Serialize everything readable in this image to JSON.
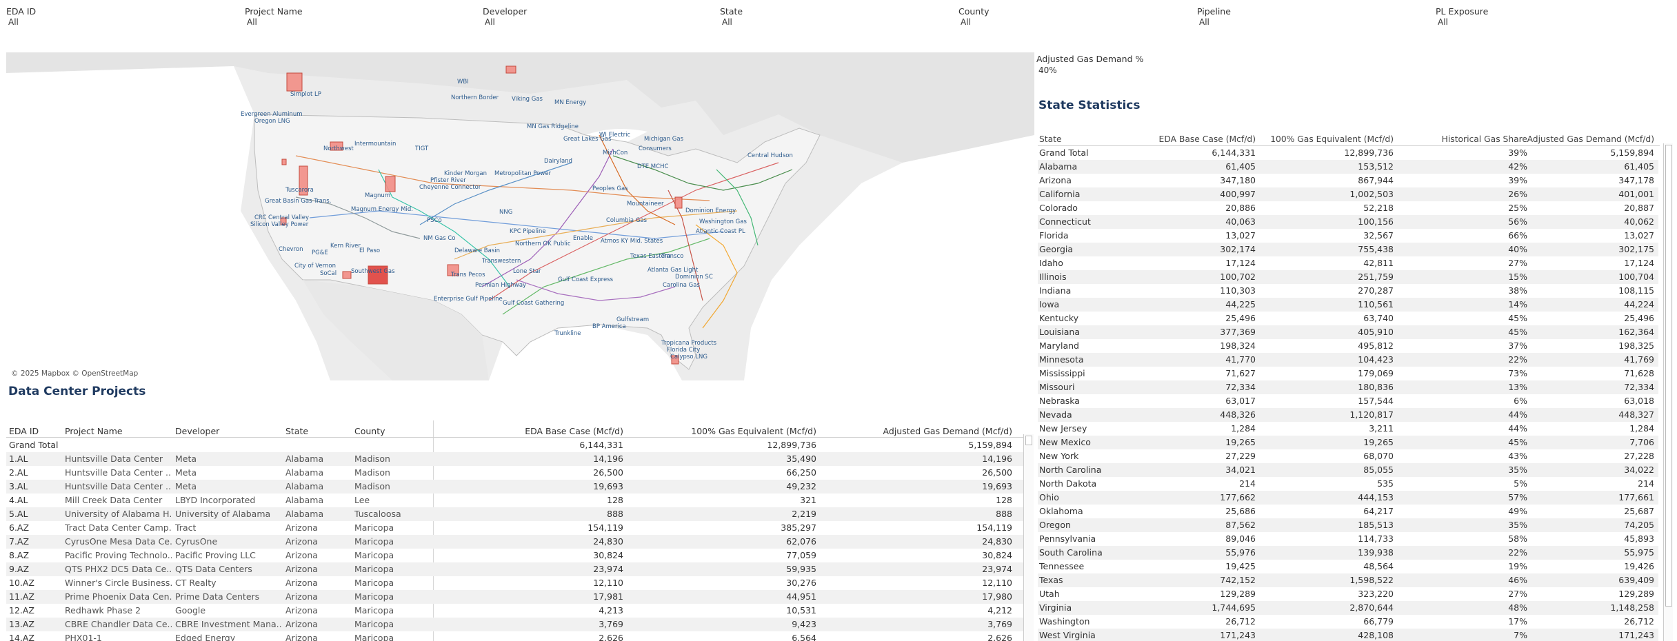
{
  "filters": [
    {
      "label": "EDA ID",
      "value": "All"
    },
    {
      "label": "Project Name",
      "value": "All"
    },
    {
      "label": "Developer",
      "value": "All"
    },
    {
      "label": "State",
      "value": "All"
    },
    {
      "label": "County",
      "value": "All"
    },
    {
      "label": "Pipeline",
      "value": "All"
    },
    {
      "label": "PL Exposure",
      "value": "All"
    }
  ],
  "map": {
    "credit": "© 2025 Mapbox © OpenStreetMap",
    "pipeline_labels": [
      "WBI",
      "Northern Border",
      "Viking Gas",
      "MN Energy",
      "Simplot LP",
      "Evergreen Aluminum",
      "Oregon LNG",
      "Intermountain",
      "Northwest",
      "TIGT",
      "MN Gas Ridgeline",
      "Great Lakes Gas",
      "WI Electric",
      "Michigan Gas",
      "Consumers",
      "MichCon",
      "DTE MCHC",
      "Central Hudson",
      "Dairyland",
      "Cheyenne Connector",
      "Kinder Morgan",
      "Pfister River",
      "Metropolitan Power",
      "Peoples Gas",
      "Tuscarora",
      "Magnum",
      "Great Basin Gas Trans.",
      "Magnum Energy Mid.",
      "CRC Central Valley",
      "Silicon Valley Power",
      "PSCo",
      "NM Gas Co",
      "Kern River",
      "El Paso",
      "Chevron",
      "PG&E",
      "City of Vernon",
      "SoCal",
      "Southwest Gas",
      "Trans Pecos",
      "Transwestern",
      "NNG",
      "KPC Pipeline",
      "Northern OK Public",
      "Enable",
      "Atmos KY Mid. States",
      "Columbia Gas",
      "Enterprise Gulf Pipeline",
      "Texas Eastern",
      "Lone Star",
      "Gulf Coast Express",
      "Gulf Coast Gathering",
      "Trunkline",
      "BP America",
      "Gulfstream",
      "Tropicana Products",
      "Florida City",
      "Calypso LNG",
      "Dominion SC",
      "Carolina Gas",
      "Atlanta Gas Light",
      "Transco",
      "Washington Gas",
      "Atlantic Coast PL",
      "Dominion Energy",
      "Mountaineer",
      "Permian Highway",
      "Delaware Basin"
    ]
  },
  "parameter": {
    "label": "Adjusted Gas Demand %",
    "value": "40%"
  },
  "state_statistics": {
    "title": "State Statistics",
    "headers": {
      "state": "State",
      "eda": "EDA Base Case (Mcf/d)",
      "gas": "100% Gas Equivalent (Mcf/d)",
      "hist": "Historical Gas Share",
      "adj": "Adjusted Gas Demand (Mcf/d)"
    },
    "rows": [
      {
        "state": "Grand Total",
        "eda": "6,144,331",
        "gas": "12,899,736",
        "hist": "39%",
        "adj": "5,159,894"
      },
      {
        "state": "Alabama",
        "eda": "61,405",
        "gas": "153,512",
        "hist": "42%",
        "adj": "61,405"
      },
      {
        "state": "Arizona",
        "eda": "347,180",
        "gas": "867,944",
        "hist": "39%",
        "adj": "347,178"
      },
      {
        "state": "California",
        "eda": "400,997",
        "gas": "1,002,503",
        "hist": "26%",
        "adj": "401,001"
      },
      {
        "state": "Colorado",
        "eda": "20,886",
        "gas": "52,218",
        "hist": "25%",
        "adj": "20,887"
      },
      {
        "state": "Connecticut",
        "eda": "40,063",
        "gas": "100,156",
        "hist": "56%",
        "adj": "40,062"
      },
      {
        "state": "Florida",
        "eda": "13,027",
        "gas": "32,567",
        "hist": "66%",
        "adj": "13,027"
      },
      {
        "state": "Georgia",
        "eda": "302,174",
        "gas": "755,438",
        "hist": "40%",
        "adj": "302,175"
      },
      {
        "state": "Idaho",
        "eda": "17,124",
        "gas": "42,811",
        "hist": "27%",
        "adj": "17,124"
      },
      {
        "state": "Illinois",
        "eda": "100,702",
        "gas": "251,759",
        "hist": "15%",
        "adj": "100,704"
      },
      {
        "state": "Indiana",
        "eda": "110,303",
        "gas": "270,287",
        "hist": "38%",
        "adj": "108,115"
      },
      {
        "state": "Iowa",
        "eda": "44,225",
        "gas": "110,561",
        "hist": "14%",
        "adj": "44,224"
      },
      {
        "state": "Kentucky",
        "eda": "25,496",
        "gas": "63,740",
        "hist": "45%",
        "adj": "25,496"
      },
      {
        "state": "Louisiana",
        "eda": "377,369",
        "gas": "405,910",
        "hist": "45%",
        "adj": "162,364"
      },
      {
        "state": "Maryland",
        "eda": "198,324",
        "gas": "495,812",
        "hist": "37%",
        "adj": "198,325"
      },
      {
        "state": "Minnesota",
        "eda": "41,770",
        "gas": "104,423",
        "hist": "22%",
        "adj": "41,769"
      },
      {
        "state": "Mississippi",
        "eda": "71,627",
        "gas": "179,069",
        "hist": "73%",
        "adj": "71,628"
      },
      {
        "state": "Missouri",
        "eda": "72,334",
        "gas": "180,836",
        "hist": "13%",
        "adj": "72,334"
      },
      {
        "state": "Nebraska",
        "eda": "63,017",
        "gas": "157,544",
        "hist": "6%",
        "adj": "63,018"
      },
      {
        "state": "Nevada",
        "eda": "448,326",
        "gas": "1,120,817",
        "hist": "44%",
        "adj": "448,327"
      },
      {
        "state": "New Jersey",
        "eda": "1,284",
        "gas": "3,211",
        "hist": "44%",
        "adj": "1,284"
      },
      {
        "state": "New Mexico",
        "eda": "19,265",
        "gas": "19,265",
        "hist": "45%",
        "adj": "7,706"
      },
      {
        "state": "New York",
        "eda": "27,229",
        "gas": "68,070",
        "hist": "43%",
        "adj": "27,228"
      },
      {
        "state": "North Carolina",
        "eda": "34,021",
        "gas": "85,055",
        "hist": "35%",
        "adj": "34,022"
      },
      {
        "state": "North Dakota",
        "eda": "214",
        "gas": "535",
        "hist": "5%",
        "adj": "214"
      },
      {
        "state": "Ohio",
        "eda": "177,662",
        "gas": "444,153",
        "hist": "57%",
        "adj": "177,661"
      },
      {
        "state": "Oklahoma",
        "eda": "25,686",
        "gas": "64,217",
        "hist": "49%",
        "adj": "25,687"
      },
      {
        "state": "Oregon",
        "eda": "87,562",
        "gas": "185,513",
        "hist": "35%",
        "adj": "74,205"
      },
      {
        "state": "Pennsylvania",
        "eda": "89,046",
        "gas": "114,733",
        "hist": "58%",
        "adj": "45,893"
      },
      {
        "state": "South Carolina",
        "eda": "55,976",
        "gas": "139,938",
        "hist": "22%",
        "adj": "55,975"
      },
      {
        "state": "Tennessee",
        "eda": "19,425",
        "gas": "48,564",
        "hist": "19%",
        "adj": "19,426"
      },
      {
        "state": "Texas",
        "eda": "742,152",
        "gas": "1,598,522",
        "hist": "46%",
        "adj": "639,409"
      },
      {
        "state": "Utah",
        "eda": "129,289",
        "gas": "323,220",
        "hist": "27%",
        "adj": "129,289"
      },
      {
        "state": "Virginia",
        "eda": "1,744,695",
        "gas": "2,870,644",
        "hist": "48%",
        "adj": "1,148,258"
      },
      {
        "state": "Washington",
        "eda": "26,712",
        "gas": "66,779",
        "hist": "17%",
        "adj": "26,712"
      },
      {
        "state": "West Virginia",
        "eda": "171,243",
        "gas": "428,108",
        "hist": "7%",
        "adj": "171,243"
      }
    ]
  },
  "data_center_projects": {
    "title": "Data Center Projects",
    "headers": {
      "id": "EDA ID",
      "name": "Project Name",
      "dev": "Developer",
      "state": "State",
      "county": "County",
      "eda": "EDA Base Case (Mcf/d)",
      "gas": "100% Gas Equivalent (Mcf/d)",
      "adj": "Adjusted Gas Demand (Mcf/d)"
    },
    "grand_total": {
      "label": "Grand Total",
      "eda": "6,144,331",
      "gas": "12,899,736",
      "adj": "5,159,894"
    },
    "rows": [
      {
        "id": "1.AL",
        "name": "Huntsville Data Center",
        "dev": "Meta",
        "state": "Alabama",
        "county": "Madison",
        "eda": "14,196",
        "gas": "35,490",
        "adj": "14,196"
      },
      {
        "id": "2.AL",
        "name": "Huntsville Data Center ..",
        "dev": "Meta",
        "state": "Alabama",
        "county": "Madison",
        "eda": "26,500",
        "gas": "66,250",
        "adj": "26,500"
      },
      {
        "id": "3.AL",
        "name": "Huntsville Data Center ..",
        "dev": "Meta",
        "state": "Alabama",
        "county": "Madison",
        "eda": "19,693",
        "gas": "49,232",
        "adj": "19,693"
      },
      {
        "id": "4.AL",
        "name": "Mill Creek Data Center",
        "dev": "LBYD Incorporated",
        "state": "Alabama",
        "county": "Lee",
        "eda": "128",
        "gas": "321",
        "adj": "128"
      },
      {
        "id": "5.AL",
        "name": "University of Alabama H..",
        "dev": "University of Alabama",
        "state": "Alabama",
        "county": "Tuscaloosa",
        "eda": "888",
        "gas": "2,219",
        "adj": "888"
      },
      {
        "id": "6.AZ",
        "name": "Tract Data Center Camp..",
        "dev": "Tract",
        "state": "Arizona",
        "county": "Maricopa",
        "eda": "154,119",
        "gas": "385,297",
        "adj": "154,119"
      },
      {
        "id": "7.AZ",
        "name": "CyrusOne Mesa Data Ce..",
        "dev": "CyrusOne",
        "state": "Arizona",
        "county": "Maricopa",
        "eda": "24,830",
        "gas": "62,076",
        "adj": "24,830"
      },
      {
        "id": "8.AZ",
        "name": "Pacific Proving Technolo..",
        "dev": "Pacific Proving LLC",
        "state": "Arizona",
        "county": "Maricopa",
        "eda": "30,824",
        "gas": "77,059",
        "adj": "30,824"
      },
      {
        "id": "9.AZ",
        "name": "QTS PHX2 DC5 Data Ce..",
        "dev": "QTS Data Centers",
        "state": "Arizona",
        "county": "Maricopa",
        "eda": "23,974",
        "gas": "59,935",
        "adj": "23,974"
      },
      {
        "id": "10.AZ",
        "name": "Winner's Circle Business..",
        "dev": "CT Realty",
        "state": "Arizona",
        "county": "Maricopa",
        "eda": "12,110",
        "gas": "30,276",
        "adj": "12,110"
      },
      {
        "id": "11.AZ",
        "name": "Prime Phoenix Data Cen..",
        "dev": "Prime Data Centers",
        "state": "Arizona",
        "county": "Maricopa",
        "eda": "17,981",
        "gas": "44,951",
        "adj": "17,980"
      },
      {
        "id": "12.AZ",
        "name": "Redhawk Phase 2",
        "dev": "Google",
        "state": "Arizona",
        "county": "Maricopa",
        "eda": "4,213",
        "gas": "10,531",
        "adj": "4,212"
      },
      {
        "id": "13.AZ",
        "name": "CBRE Chandler Data Ce..",
        "dev": "CBRE Investment Mana..",
        "state": "Arizona",
        "county": "Maricopa",
        "eda": "3,769",
        "gas": "9,423",
        "adj": "3,769"
      },
      {
        "id": "14.AZ",
        "name": "PHX01-1",
        "dev": "Edged Energy",
        "state": "Arizona",
        "county": "Maricopa",
        "eda": "2,626",
        "gas": "6,564",
        "adj": "2,626"
      }
    ]
  },
  "colors": {
    "title": "#1f3a60",
    "map_land": "#e3e3e3",
    "map_us": "#f3f3f3",
    "pipeline_label": "#2b5a8c",
    "project_area": "#f28e86",
    "project_border": "#c0392b"
  }
}
